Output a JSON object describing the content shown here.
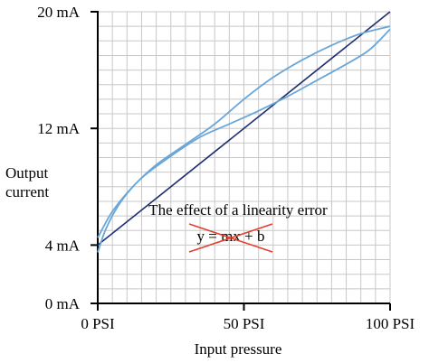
{
  "chart_data": {
    "type": "line",
    "title": "",
    "xlabel": "Input pressure",
    "ylabel": [
      "Output",
      "current"
    ],
    "xlim": [
      0,
      100
    ],
    "ylim": [
      0,
      20
    ],
    "x_ticks": [
      {
        "value": 0,
        "label": "0 PSI"
      },
      {
        "value": 50,
        "label": "50 PSI"
      },
      {
        "value": 100,
        "label": "100 PSI"
      }
    ],
    "y_ticks": [
      {
        "value": 0,
        "label": "0 mA"
      },
      {
        "value": 4,
        "label": "4 mA"
      },
      {
        "value": 12,
        "label": "12 mA"
      },
      {
        "value": 20,
        "label": "20 mA"
      }
    ],
    "grid": true,
    "grid_minor_step": {
      "x": 5,
      "y": 1
    },
    "series": [
      {
        "color": "#1f2d6e",
        "points": [
          [
            0,
            4
          ],
          [
            100,
            20
          ]
        ]
      },
      {
        "color": "#6aa6d8",
        "points": [
          [
            0,
            3.5
          ],
          [
            3,
            5.2
          ],
          [
            8,
            7
          ],
          [
            15,
            8.6
          ],
          [
            25,
            10.1
          ],
          [
            35,
            11.4
          ],
          [
            45,
            12.3
          ],
          [
            55,
            13.2
          ],
          [
            65,
            14.2
          ],
          [
            75,
            15.3
          ],
          [
            85,
            16.4
          ],
          [
            93,
            17.4
          ],
          [
            100,
            18.8
          ]
        ]
      },
      {
        "color": "#6aa6d8",
        "points": [
          [
            0,
            4.5
          ],
          [
            5,
            6.3
          ],
          [
            12,
            8
          ],
          [
            20,
            9.5
          ],
          [
            30,
            10.9
          ],
          [
            40,
            12.3
          ],
          [
            50,
            14
          ],
          [
            60,
            15.5
          ],
          [
            70,
            16.7
          ],
          [
            80,
            17.7
          ],
          [
            90,
            18.5
          ],
          [
            100,
            19
          ]
        ]
      }
    ],
    "annotations": {
      "caption": "The effect of a linearity error",
      "formula": "y = mx + b",
      "strike_color": "#e0402c"
    }
  }
}
